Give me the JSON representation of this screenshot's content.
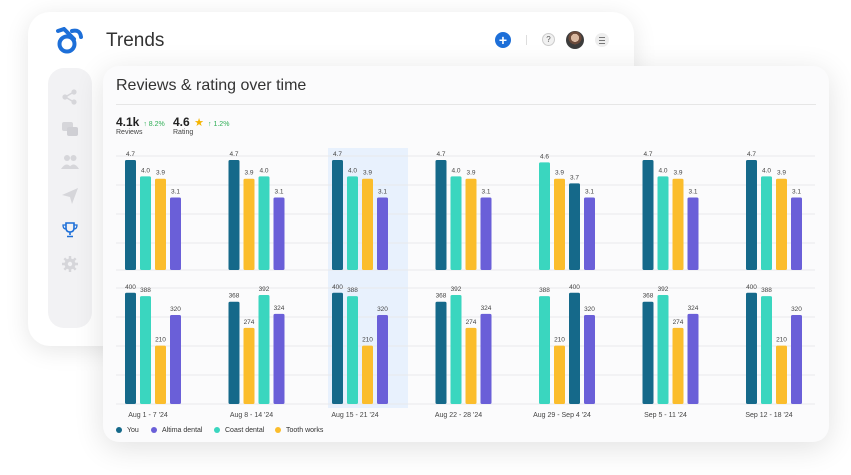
{
  "app": {
    "title": "Trends"
  },
  "icons": {
    "logo": "logo-icon",
    "add": "plus-icon",
    "help": "help-icon",
    "menu": "menu-icon",
    "sidebar": [
      "flow-icon",
      "chat-icon",
      "users-icon",
      "send-icon",
      "trophy-icon",
      "gear-icon"
    ]
  },
  "header": {
    "add_label": "+",
    "help_label": "?"
  },
  "card": {
    "title": "Reviews & rating over time",
    "metrics": [
      {
        "value": "4.1k",
        "change": "↑ 8.2%",
        "label": "Reviews",
        "has_star": false
      },
      {
        "value": "4.6",
        "change": "↑ 1.2%",
        "label": "Rating",
        "has_star": true,
        "star": "★"
      }
    ]
  },
  "colors": {
    "you": "#15698a",
    "altima": "#6a5fd8",
    "coast": "#3ad6bf",
    "tooth": "#fbbd2c",
    "highlight": "#e8f1fd",
    "brand": "#1d6fd8",
    "positive": "#2fae55"
  },
  "chart_data": {
    "type": "bar",
    "categories": [
      "Aug 1 - 7 '24",
      "Aug 8 - 14 '24",
      "Aug 15 - 21 '24",
      "Aug 22 - 28 '24",
      "Aug 29 - Sep 4 '24",
      "Sep 5 - 11 '24",
      "Sep 12 - 18 '24"
    ],
    "highlighted_category": "Aug 15 - 21 '24",
    "legend": [
      "You",
      "Altima dental",
      "Coast dental",
      "Tooth works"
    ],
    "panels": [
      {
        "name": "rating",
        "bars": [
          [
            {
              "s": "You",
              "v": 4.7
            },
            {
              "s": "Coast dental",
              "v": 4.0
            },
            {
              "s": "Tooth works",
              "v": 3.9
            },
            {
              "s": "Altima dental",
              "v": 3.1
            }
          ],
          [
            {
              "s": "You",
              "v": 4.7
            },
            {
              "s": "Tooth works",
              "v": 3.9
            },
            {
              "s": "Coast dental",
              "v": 4.0
            },
            {
              "s": "Altima dental",
              "v": 3.1
            }
          ],
          [
            {
              "s": "You",
              "v": 4.7
            },
            {
              "s": "Coast dental",
              "v": 4.0
            },
            {
              "s": "Tooth works",
              "v": 3.9
            },
            {
              "s": "Altima dental",
              "v": 3.1
            }
          ],
          [
            {
              "s": "You",
              "v": 4.7
            },
            {
              "s": "Coast dental",
              "v": 4.0
            },
            {
              "s": "Tooth works",
              "v": 3.9
            },
            {
              "s": "Altima dental",
              "v": 3.1
            }
          ],
          [
            {
              "s": "Coast dental",
              "v": 4.6
            },
            {
              "s": "Tooth works",
              "v": 3.9
            },
            {
              "s": "You",
              "v": 3.7
            },
            {
              "s": "Altima dental",
              "v": 3.1
            }
          ],
          [
            {
              "s": "You",
              "v": 4.7
            },
            {
              "s": "Coast dental",
              "v": 4.0
            },
            {
              "s": "Tooth works",
              "v": 3.9
            },
            {
              "s": "Altima dental",
              "v": 3.1
            }
          ],
          [
            {
              "s": "You",
              "v": 4.7
            },
            {
              "s": "Coast dental",
              "v": 4.0
            },
            {
              "s": "Tooth works",
              "v": 3.9
            },
            {
              "s": "Altima dental",
              "v": 3.1
            }
          ]
        ]
      },
      {
        "name": "reviews",
        "bars": [
          [
            {
              "s": "You",
              "v": 400
            },
            {
              "s": "Coast dental",
              "v": 388
            },
            {
              "s": "Tooth works",
              "v": 210
            },
            {
              "s": "Altima dental",
              "v": 320
            }
          ],
          [
            {
              "s": "You",
              "v": 368
            },
            {
              "s": "Tooth works",
              "v": 274
            },
            {
              "s": "Coast dental",
              "v": 392
            },
            {
              "s": "Altima dental",
              "v": 324
            }
          ],
          [
            {
              "s": "You",
              "v": 400
            },
            {
              "s": "Coast dental",
              "v": 388
            },
            {
              "s": "Tooth works",
              "v": 210
            },
            {
              "s": "Altima dental",
              "v": 320
            }
          ],
          [
            {
              "s": "You",
              "v": 368
            },
            {
              "s": "Coast dental",
              "v": 392
            },
            {
              "s": "Tooth works",
              "v": 274
            },
            {
              "s": "Altima dental",
              "v": 324
            }
          ],
          [
            {
              "s": "Coast dental",
              "v": 388
            },
            {
              "s": "Tooth works",
              "v": 210
            },
            {
              "s": "You",
              "v": 400
            },
            {
              "s": "Altima dental",
              "v": 320
            }
          ],
          [
            {
              "s": "You",
              "v": 368
            },
            {
              "s": "Coast dental",
              "v": 392
            },
            {
              "s": "Tooth works",
              "v": 274
            },
            {
              "s": "Altima dental",
              "v": 324
            }
          ],
          [
            {
              "s": "You",
              "v": 400
            },
            {
              "s": "Coast dental",
              "v": 388
            },
            {
              "s": "Tooth works",
              "v": 210
            },
            {
              "s": "Altima dental",
              "v": 320
            }
          ]
        ]
      }
    ],
    "grid": true
  }
}
